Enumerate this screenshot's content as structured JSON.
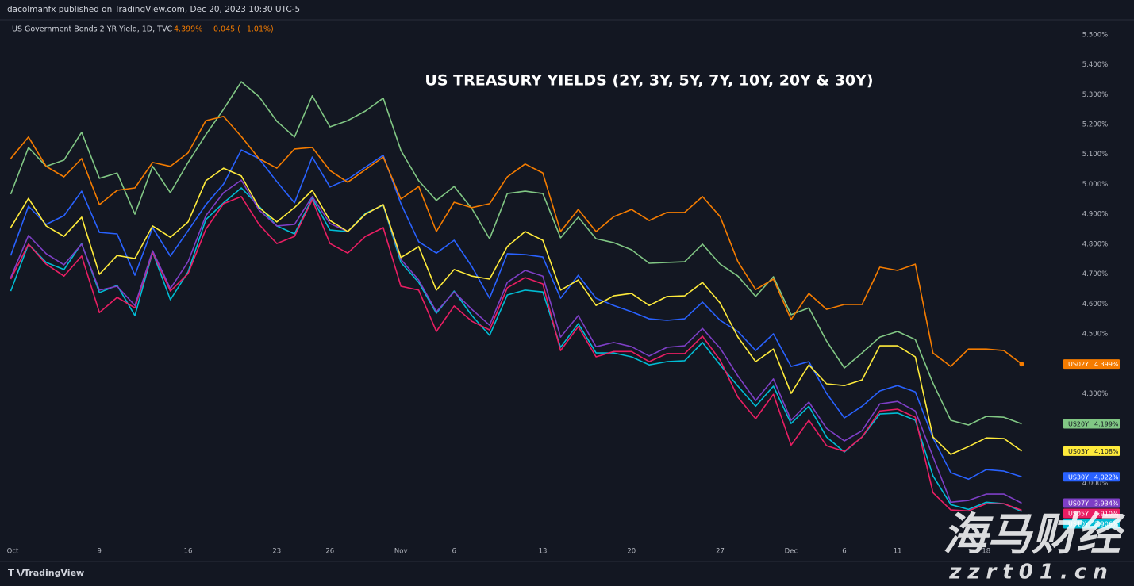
{
  "header": {
    "publisher": "dacolmanfx published on TradingView.com, Dec 20, 2023 10:30 UTC-5",
    "symbol": "US Government Bonds 2 YR Yield, 1D, TVC",
    "last": "4.399%",
    "change": "−0.045 (−1.01%)"
  },
  "footer": {
    "brand": "TradingView"
  },
  "watermark": {
    "title": "海马财经",
    "site": "zzrt01.cn"
  },
  "chart_data": {
    "type": "line",
    "title": "US TREASURY YIELDS (2Y, 3Y, 5Y, 7Y, 10Y, 20Y & 30Y)",
    "categories": [
      "Oct",
      null,
      null,
      null,
      null,
      "9",
      null,
      null,
      null,
      null,
      "16",
      null,
      null,
      null,
      null,
      "23",
      null,
      null,
      "26",
      null,
      null,
      null,
      "Nov",
      null,
      null,
      "6",
      null,
      null,
      null,
      null,
      "13",
      null,
      null,
      null,
      null,
      "20",
      null,
      null,
      null,
      null,
      "27",
      null,
      null,
      null,
      "Dec",
      null,
      null,
      "6",
      null,
      null,
      "11",
      null,
      null,
      null,
      null,
      "18",
      null,
      null
    ],
    "ylim": [
      3.8,
      5.55
    ],
    "yticks": [
      {
        "value": 5.5,
        "label": "5.500%"
      },
      {
        "value": 5.4,
        "label": "5.400%"
      },
      {
        "value": 5.3,
        "label": "5.300%"
      },
      {
        "value": 5.2,
        "label": "5.200%"
      },
      {
        "value": 5.1,
        "label": "5.100%"
      },
      {
        "value": 5.0,
        "label": "5.000%"
      },
      {
        "value": 4.9,
        "label": "4.900%"
      },
      {
        "value": 4.8,
        "label": "4.800%"
      },
      {
        "value": 4.7,
        "label": "4.700%"
      },
      {
        "value": 4.6,
        "label": "4.600%"
      },
      {
        "value": 4.5,
        "label": "4.500%"
      },
      {
        "value": 4.3,
        "label": "4.300%"
      },
      {
        "value": 4.0,
        "label": "4.000%"
      }
    ],
    "grid": false,
    "series": [
      {
        "name": "US02Y",
        "color": "#f57c00",
        "last_label": "4.399%",
        "values": [
          5.086,
          5.158,
          5.06,
          5.025,
          5.086,
          4.932,
          4.98,
          4.988,
          5.073,
          5.06,
          5.105,
          5.213,
          5.227,
          5.16,
          5.086,
          5.054,
          5.118,
          5.123,
          5.046,
          5.007,
          5.049,
          5.091,
          4.951,
          4.993,
          4.842,
          4.94,
          4.922,
          4.935,
          5.025,
          5.068,
          5.038,
          4.842,
          4.916,
          4.842,
          4.892,
          4.916,
          4.879,
          4.906,
          4.906,
          4.959,
          4.892,
          4.741,
          4.648,
          4.683,
          4.548,
          4.635,
          4.582,
          4.598,
          4.598,
          4.723,
          4.712,
          4.733,
          4.436,
          4.391,
          4.449,
          4.449,
          4.444,
          4.399
        ]
      },
      {
        "name": "US20Y",
        "color": "#81c784",
        "last_label": "4.199%",
        "values": [
          4.967,
          5.123,
          5.06,
          5.081,
          5.174,
          5.02,
          5.038,
          4.9,
          5.06,
          4.972,
          5.073,
          5.166,
          5.251,
          5.343,
          5.293,
          5.211,
          5.158,
          5.296,
          5.192,
          5.213,
          5.245,
          5.288,
          5.113,
          5.012,
          4.946,
          4.993,
          4.919,
          4.818,
          4.969,
          4.977,
          4.969,
          4.821,
          4.89,
          4.818,
          4.805,
          4.781,
          4.736,
          4.739,
          4.741,
          4.8,
          4.733,
          4.693,
          4.625,
          4.691,
          4.564,
          4.587,
          4.476,
          4.386,
          4.436,
          4.489,
          4.508,
          4.481,
          4.335,
          4.211,
          4.195,
          4.224,
          4.221,
          4.199
        ]
      },
      {
        "name": "US03Y",
        "color": "#ffeb3b",
        "last_label": "4.108%",
        "values": [
          4.855,
          4.953,
          4.861,
          4.826,
          4.89,
          4.699,
          4.762,
          4.752,
          4.861,
          4.823,
          4.874,
          5.012,
          5.054,
          5.028,
          4.922,
          4.874,
          4.922,
          4.98,
          4.879,
          4.842,
          4.9,
          4.932,
          4.755,
          4.792,
          4.646,
          4.715,
          4.693,
          4.683,
          4.792,
          4.842,
          4.813,
          4.646,
          4.68,
          4.595,
          4.627,
          4.635,
          4.595,
          4.625,
          4.627,
          4.672,
          4.603,
          4.489,
          4.407,
          4.449,
          4.301,
          4.396,
          4.333,
          4.327,
          4.346,
          4.46,
          4.46,
          4.423,
          4.155,
          4.097,
          4.123,
          4.152,
          4.15,
          4.108
        ]
      },
      {
        "name": "US30Y",
        "color": "#2962ff",
        "last_label": "4.022%",
        "values": [
          4.762,
          4.927,
          4.866,
          4.895,
          4.977,
          4.839,
          4.834,
          4.696,
          4.855,
          4.76,
          4.845,
          4.932,
          5.001,
          5.115,
          5.086,
          5.009,
          4.938,
          5.091,
          4.991,
          5.017,
          5.057,
          5.097,
          4.935,
          4.808,
          4.77,
          4.813,
          4.725,
          4.619,
          4.768,
          4.765,
          4.757,
          4.619,
          4.696,
          4.619,
          4.595,
          4.574,
          4.55,
          4.545,
          4.55,
          4.606,
          4.545,
          4.508,
          4.444,
          4.5,
          4.391,
          4.407,
          4.301,
          4.219,
          4.258,
          4.309,
          4.327,
          4.306,
          4.152,
          4.036,
          4.014,
          4.046,
          4.041,
          4.022
        ]
      },
      {
        "name": "US07Y",
        "color": "#7e3fc6",
        "last_label": "3.934%",
        "values": [
          4.688,
          4.829,
          4.768,
          4.731,
          4.8,
          4.646,
          4.659,
          4.595,
          4.778,
          4.651,
          4.741,
          4.895,
          4.972,
          5.014,
          4.914,
          4.861,
          4.866,
          4.959,
          4.869,
          4.842,
          4.9,
          4.932,
          4.749,
          4.68,
          4.574,
          4.64,
          4.582,
          4.529,
          4.672,
          4.712,
          4.693,
          4.489,
          4.561,
          4.457,
          4.471,
          4.457,
          4.426,
          4.455,
          4.46,
          4.518,
          4.452,
          4.359,
          4.277,
          4.349,
          4.211,
          4.272,
          4.184,
          4.142,
          4.176,
          4.266,
          4.274,
          4.242,
          4.089,
          3.937,
          3.943,
          3.964,
          3.964,
          3.934
        ]
      },
      {
        "name": "US05Y",
        "color": "#e91e63",
        "last_label": "3.910%",
        "values": [
          4.683,
          4.8,
          4.733,
          4.693,
          4.76,
          4.571,
          4.622,
          4.587,
          4.773,
          4.643,
          4.701,
          4.85,
          4.935,
          4.959,
          4.866,
          4.802,
          4.826,
          4.948,
          4.802,
          4.77,
          4.826,
          4.855,
          4.659,
          4.646,
          4.508,
          4.593,
          4.542,
          4.513,
          4.654,
          4.688,
          4.667,
          4.444,
          4.524,
          4.423,
          4.441,
          4.441,
          4.407,
          4.434,
          4.434,
          4.492,
          4.412,
          4.288,
          4.216,
          4.298,
          4.128,
          4.211,
          4.126,
          4.107,
          4.155,
          4.242,
          4.248,
          4.221,
          3.969,
          3.911,
          3.908,
          3.932,
          3.932,
          3.91
        ]
      },
      {
        "name": "US10Y",
        "color": "#00bcd4",
        "last_label": "3.906%",
        "values": [
          4.643,
          4.8,
          4.739,
          4.715,
          4.802,
          4.638,
          4.662,
          4.561,
          4.773,
          4.614,
          4.707,
          4.882,
          4.938,
          4.988,
          4.927,
          4.861,
          4.834,
          4.953,
          4.847,
          4.842,
          4.903,
          4.93,
          4.739,
          4.672,
          4.569,
          4.643,
          4.561,
          4.495,
          4.63,
          4.646,
          4.64,
          4.455,
          4.534,
          4.436,
          4.436,
          4.423,
          4.396,
          4.407,
          4.41,
          4.471,
          4.396,
          4.325,
          4.258,
          4.325,
          4.2,
          4.258,
          4.155,
          4.105,
          4.155,
          4.232,
          4.235,
          4.211,
          4.025,
          3.929,
          3.913,
          3.937,
          3.932,
          3.906
        ]
      }
    ]
  }
}
